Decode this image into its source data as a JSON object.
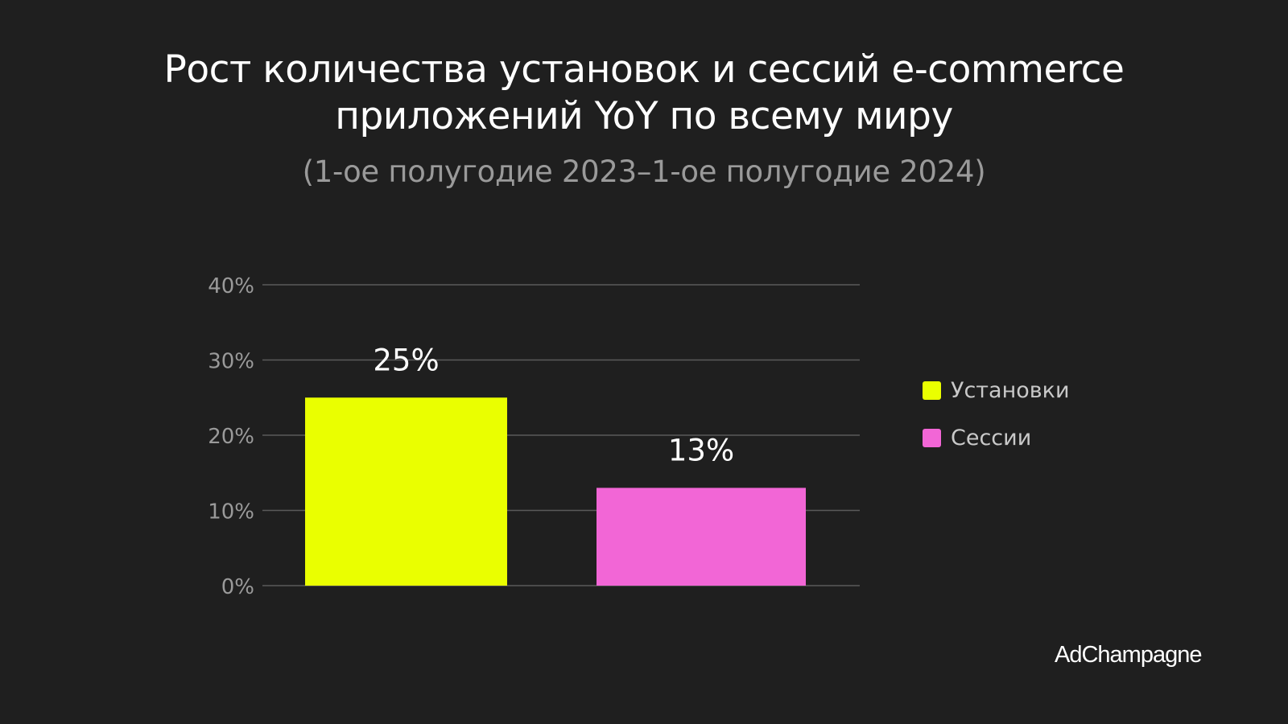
{
  "chart_data": {
    "type": "bar",
    "title_lines": [
      "Рост количества установок и сессий e-commerce",
      "приложений YoY по всему миру"
    ],
    "subtitle": "(1-ое полугодие 2023–1-ое полугодие 2024)",
    "categories": [
      "Установки",
      "Сессии"
    ],
    "values": [
      25,
      13
    ],
    "value_labels": [
      "25%",
      "13%"
    ],
    "ylim": [
      0,
      40
    ],
    "yticks": [
      0,
      10,
      20,
      30,
      40
    ],
    "ytick_labels": [
      "0%",
      "10%",
      "20%",
      "30%",
      "40%"
    ],
    "grid": true,
    "legend_position": "right",
    "legend": [
      {
        "label": "Установки",
        "color": "#eaff00"
      },
      {
        "label": "Сессии",
        "color": "#f266d6"
      }
    ]
  },
  "logo": "AdChampagne",
  "colors": {
    "background": "#1f1f1f",
    "grid": "#5a5a5a",
    "tick_text": "#9a9a9a"
  }
}
